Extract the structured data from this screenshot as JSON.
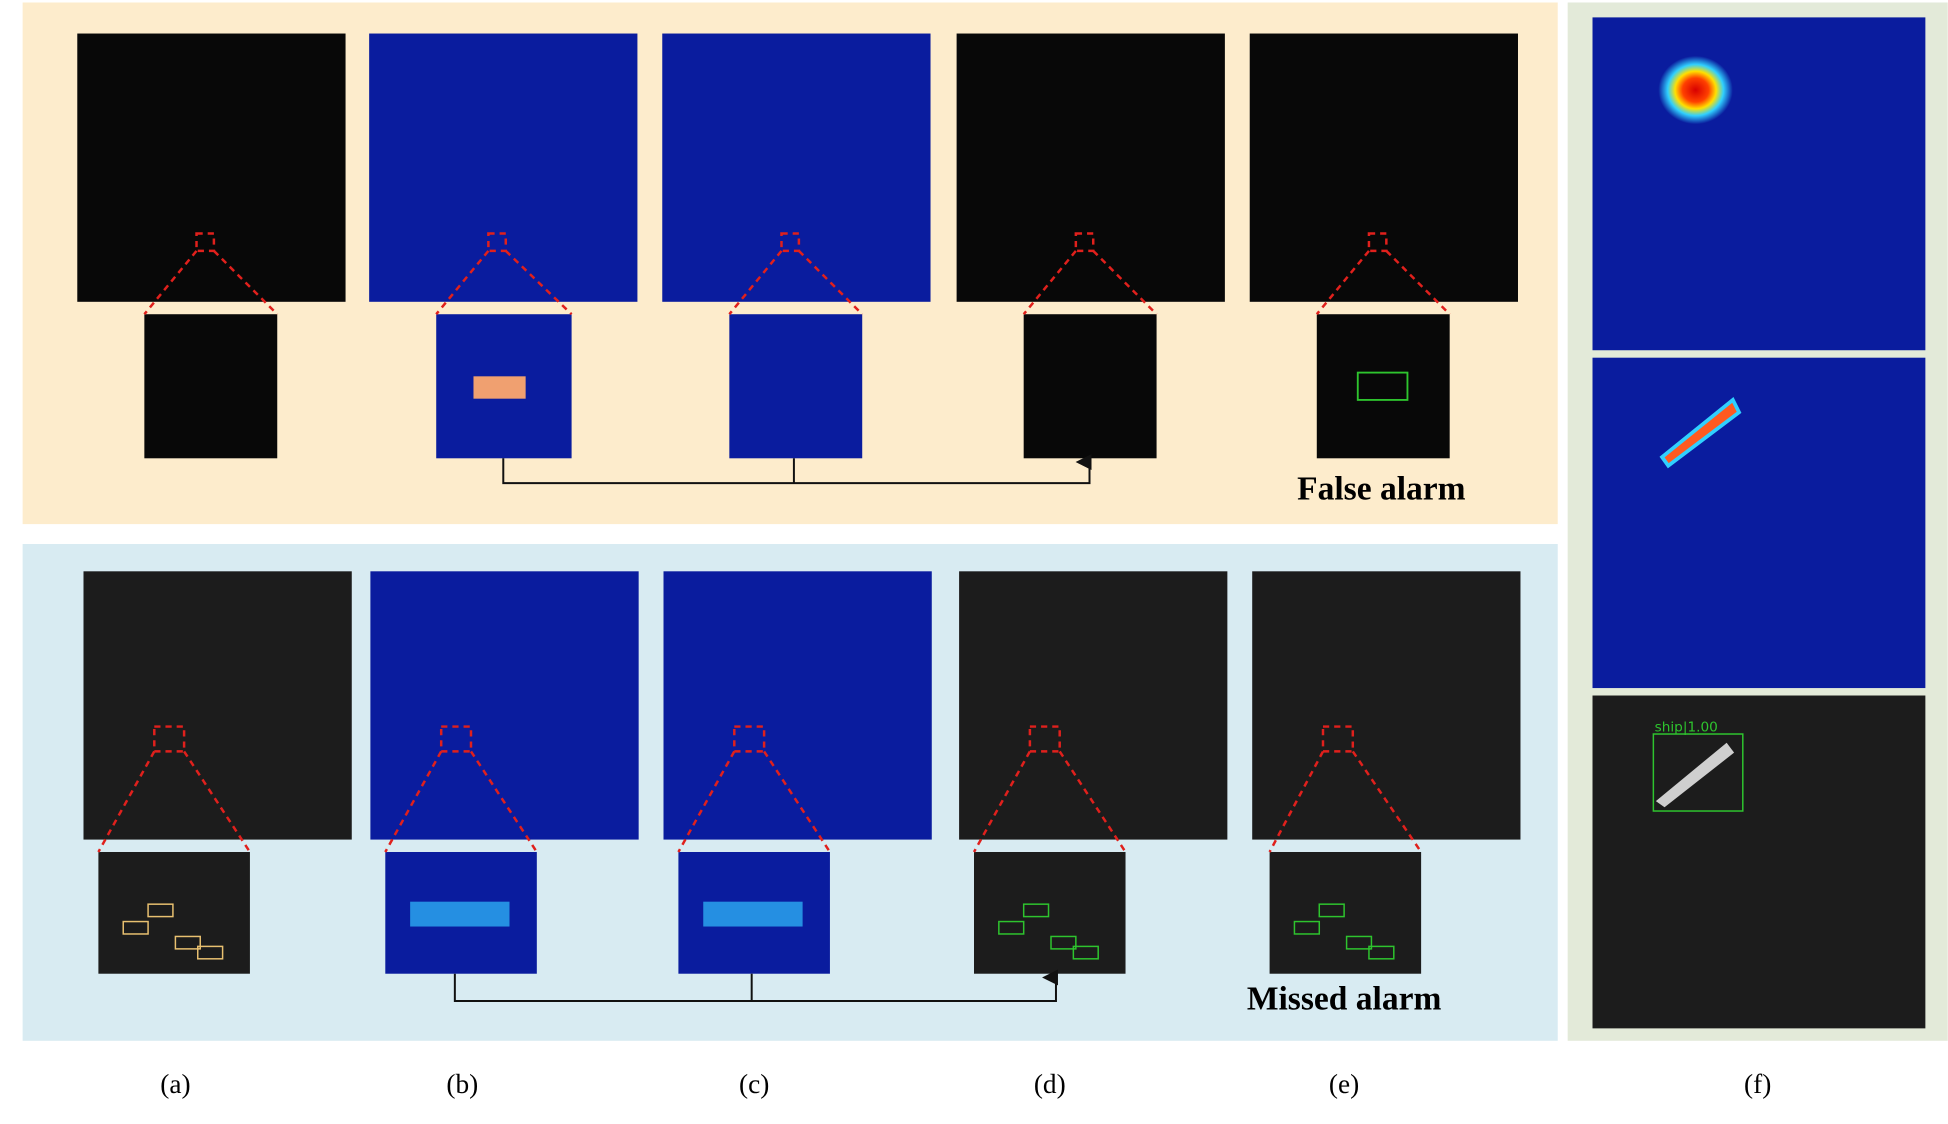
{
  "panels": {
    "top_label": "False alarm",
    "bottom_label": "Missed alarm"
  },
  "captions": [
    "(a)",
    "(b)",
    "(c)",
    "(d)",
    "(e)",
    "(f)"
  ],
  "detection_label": "ship|1.00"
}
